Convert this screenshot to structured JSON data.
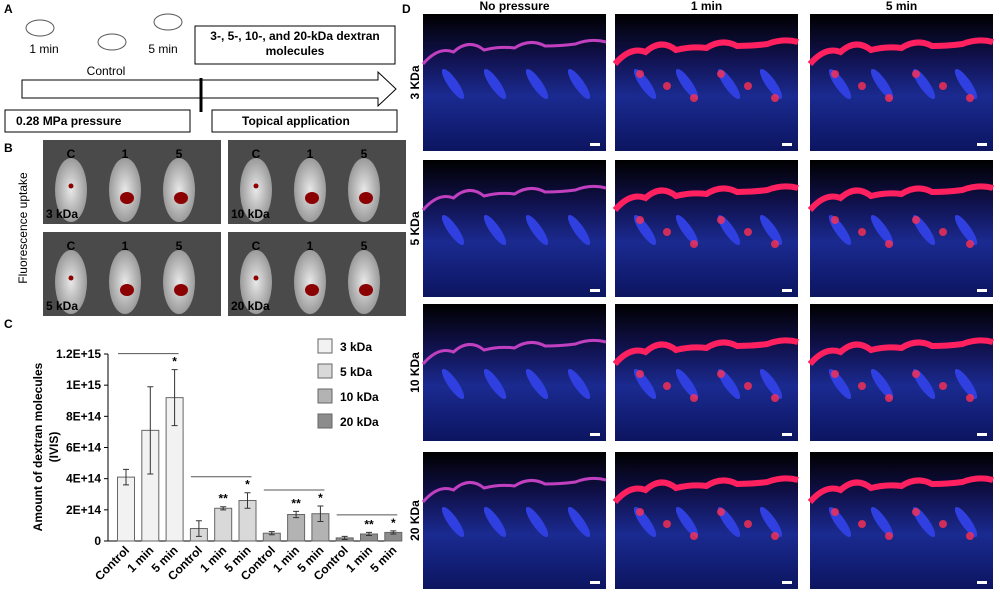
{
  "panels": {
    "a": "A",
    "b": "B",
    "c": "C",
    "d": "D"
  },
  "schematic": {
    "mice_labels": [
      "1 min",
      "Control",
      "5 min"
    ],
    "dextran_box": "3-, 5-, 10-, and 20-kDa dextran molecules",
    "pressure_box": "0.28 MPa pressure",
    "topical_box": "Topical application"
  },
  "imaging": {
    "ylabel": "Fluorescence uptake",
    "mouse_labels": [
      "C",
      "1",
      "5"
    ],
    "tiles": [
      "3 kDa",
      "10 kDa",
      "5 kDa",
      "20 kDa"
    ]
  },
  "histology": {
    "columns": [
      "No pressure",
      "1 min",
      "5 min"
    ],
    "rows": [
      "3 KDa",
      "5 KDa",
      "10 KDa",
      "20 KDa"
    ]
  },
  "chart_data": {
    "type": "bar",
    "ylabel_lines": [
      "Amount of dextran molecules",
      "(IVIS)"
    ],
    "categories": [
      "Control",
      "1 min",
      "5 min"
    ],
    "series": [
      {
        "name": "3 kDa",
        "color": "#f2f2f2",
        "values": [
          410000000000000,
          710000000000000,
          920000000000000
        ],
        "errors": [
          50000000000000,
          280000000000000,
          180000000000000
        ],
        "annotations": [
          null,
          null,
          "*"
        ]
      },
      {
        "name": "5 kDa",
        "color": "#d9d9d9",
        "values": [
          80000000000000,
          210000000000000,
          260000000000000
        ],
        "errors": [
          50000000000000,
          10000000000000,
          50000000000000
        ],
        "annotations": [
          null,
          "**",
          "*"
        ]
      },
      {
        "name": "10 kDa",
        "color": "#b3b3b3",
        "values": [
          50000000000000,
          170000000000000,
          175000000000000
        ],
        "errors": [
          10000000000000,
          20000000000000,
          50000000000000
        ],
        "annotations": [
          null,
          "**",
          "*"
        ]
      },
      {
        "name": "20 kDa",
        "color": "#8c8c8c",
        "values": [
          20000000000000,
          45000000000000,
          55000000000000
        ],
        "errors": [
          10000000000000,
          10000000000000,
          10000000000000
        ],
        "annotations": [
          null,
          "**",
          "*"
        ]
      }
    ],
    "ylim": [
      0,
      1200000000000000
    ],
    "yticks": [
      0,
      {
        "value": 200000000000000,
        "label": "2E+14"
      },
      {
        "value": 400000000000000,
        "label": "4E+14"
      },
      {
        "value": 600000000000000,
        "label": "6E+14"
      },
      {
        "value": 800000000000000,
        "label": "8E+14"
      },
      {
        "value": 1000000000000000,
        "label": "1E+15"
      },
      {
        "value": 1200000000000000,
        "label": "1.2E+15"
      }
    ],
    "legend": "top-right"
  }
}
